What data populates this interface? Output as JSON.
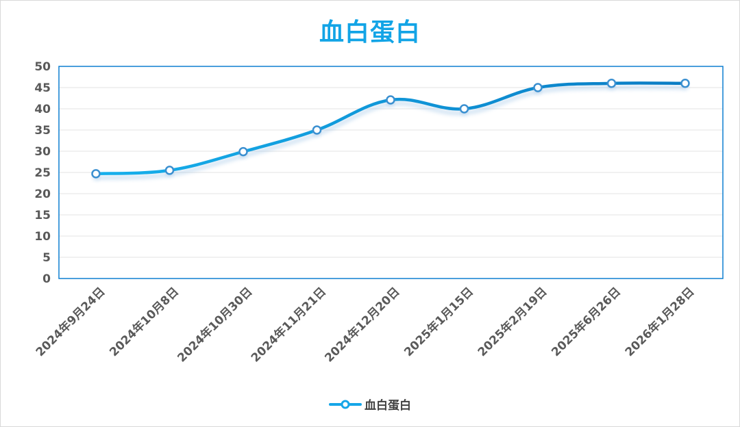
{
  "chart_data": {
    "type": "line",
    "title": "血白蛋白",
    "categories": [
      "2024年9月24日",
      "2024年10月8日",
      "2024年10月30日",
      "2024年11月21日",
      "2024年12月20日",
      "2025年1月15日",
      "2025年2月19日",
      "2025年6月26日",
      "2026年1月28日"
    ],
    "series": [
      {
        "name": "血白蛋白",
        "values": [
          24.7,
          25.5,
          29.9,
          35.0,
          42.1,
          40.0,
          45.0,
          46.0,
          46.0
        ]
      }
    ],
    "ylim": [
      0,
      50
    ],
    "yticks": [
      0,
      5,
      10,
      15,
      20,
      25,
      30,
      35,
      40,
      45,
      50
    ],
    "grid": true,
    "smooth": true,
    "legend": "bottom",
    "colors": {
      "title": "#12a4e6",
      "line_start": "#16b0ec",
      "line_end": "#0a7cc4",
      "plot_border": "#0d7fd0",
      "grid": "#e3e3e3",
      "marker_fill": "#ffffff",
      "tick_text": "#595959"
    }
  }
}
